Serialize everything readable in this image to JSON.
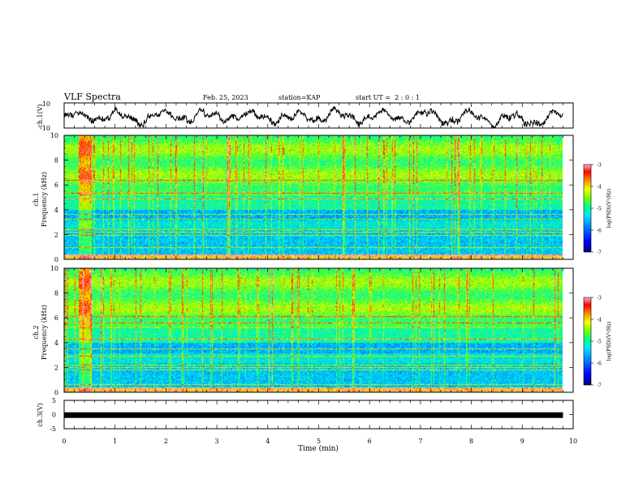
{
  "header": {
    "title": "VLF Spectra",
    "date": "Feb. 25, 2023",
    "station": "station=KAP",
    "start": "start UT =  2 : 0 : 1"
  },
  "colors": {
    "colormap": [
      "#000080",
      "#0000ff",
      "#0080ff",
      "#00e0ff",
      "#00ff80",
      "#80ff00",
      "#ffff00",
      "#ff8000",
      "#ff0000",
      "#ff80a0",
      "#ffffff"
    ],
    "waveform": "#000000"
  },
  "chart_data": [
    {
      "type": "line",
      "ylabel": "ch.1(V)",
      "ylim": [
        -10,
        10
      ],
      "yticks": [
        -10,
        10
      ],
      "xlim": [
        0,
        10
      ],
      "x_end": 9.8,
      "description_values": "noisy waveform oscillating roughly between -8 and +6 V"
    },
    {
      "type": "heatmap",
      "ylabel": "Frequency (kHz)",
      "channel": "ch.1",
      "ylim": [
        0,
        10
      ],
      "yticks": [
        0,
        2,
        4,
        6,
        8,
        10
      ],
      "xlim": [
        0,
        10
      ],
      "colorbar": {
        "label": "log(PSD)(V²/Hz)",
        "range": [
          -7,
          -3
        ],
        "ticks": [
          -3,
          -4,
          -5,
          -6,
          -7
        ]
      }
    },
    {
      "type": "heatmap",
      "ylabel": "Frequency (kHz)",
      "channel": "ch.2",
      "ylim": [
        0,
        10
      ],
      "yticks": [
        0,
        2,
        4,
        6,
        8,
        10
      ],
      "xlim": [
        0,
        10
      ],
      "colorbar": {
        "label": "log(PSD)(V²/Hz)",
        "range": [
          -7,
          -3
        ],
        "ticks": [
          -3,
          -4,
          -5,
          -6,
          -7
        ]
      }
    },
    {
      "type": "line",
      "ylabel": "ch.3(V)",
      "ylim": [
        -5,
        5
      ],
      "yticks": [
        -5,
        0,
        5
      ],
      "xlim": [
        0,
        10
      ],
      "x_end": 9.8,
      "constant_value": -0.2
    }
  ],
  "xaxis": {
    "label": "Time (min)",
    "ticks": [
      0,
      1,
      2,
      3,
      4,
      5,
      6,
      7,
      8,
      9,
      10
    ]
  }
}
